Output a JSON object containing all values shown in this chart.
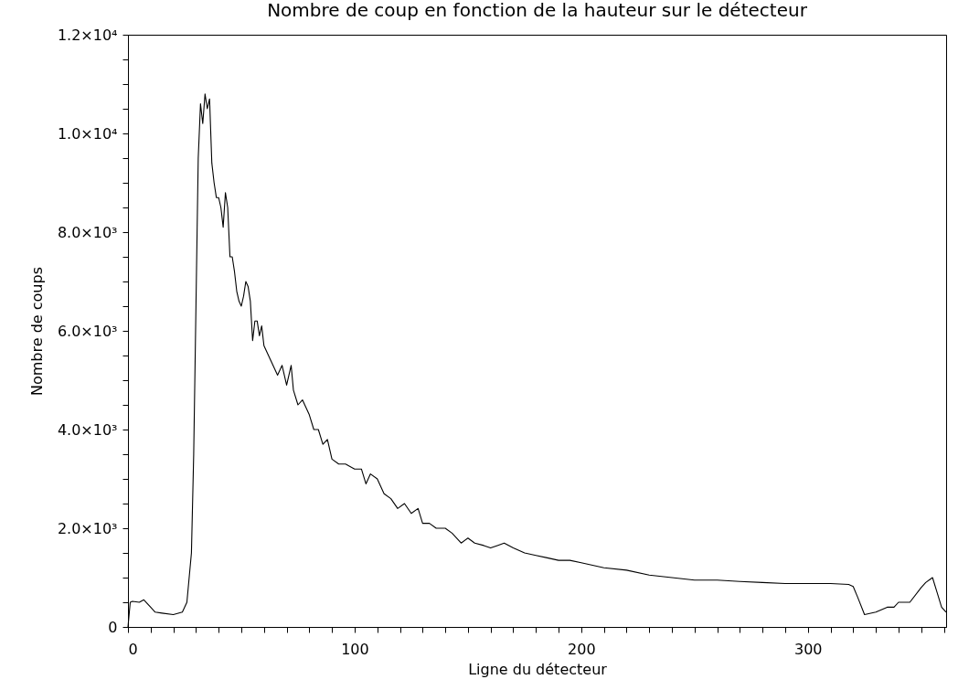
{
  "chart_data": {
    "type": "line",
    "title": "Nombre de coup en fonction de la hauteur sur le détecteur",
    "xlabel": "Ligne du détecteur",
    "ylabel": "Nombre de coups",
    "x": [
      0,
      1,
      2,
      5,
      7,
      10,
      12,
      15,
      20,
      24,
      26,
      28,
      29,
      30,
      31,
      32,
      33,
      34,
      35,
      36,
      37,
      38,
      39,
      40,
      41,
      42,
      43,
      44,
      45,
      46,
      47,
      48,
      49,
      50,
      51,
      52,
      53,
      54,
      55,
      56,
      57,
      58,
      59,
      60,
      62,
      64,
      66,
      68,
      70,
      72,
      73,
      75,
      77,
      78,
      80,
      82,
      84,
      86,
      88,
      90,
      93,
      96,
      100,
      103,
      105,
      107,
      110,
      113,
      116,
      119,
      122,
      125,
      128,
      130,
      133,
      136,
      140,
      143,
      147,
      150,
      153,
      157,
      160,
      163,
      166,
      170,
      175,
      180,
      185,
      190,
      195,
      200,
      210,
      220,
      230,
      240,
      250,
      260,
      270,
      280,
      290,
      300,
      310,
      318,
      320,
      322,
      325,
      330,
      335,
      338,
      340,
      345,
      350,
      352,
      355,
      357,
      359,
      361
    ],
    "series": [
      {
        "color": "#000000",
        "values": [
          0,
          500,
          520,
          500,
          550,
          400,
          300,
          280,
          250,
          300,
          500,
          1500,
          3500,
          6500,
          9500,
          10600,
          10200,
          10800,
          10500,
          10700,
          9400,
          9000,
          8700,
          8700,
          8500,
          8100,
          8800,
          8500,
          7500,
          7500,
          7200,
          6800,
          6600,
          6500,
          6700,
          7000,
          6900,
          6600,
          5800,
          6200,
          6200,
          5900,
          6100,
          5700,
          5500,
          5300,
          5100,
          5300,
          4900,
          5300,
          4800,
          4500,
          4600,
          4500,
          4300,
          4000,
          4000,
          3700,
          3800,
          3400,
          3300,
          3300,
          3200,
          3200,
          2900,
          3100,
          3000,
          2700,
          2600,
          2400,
          2500,
          2300,
          2400,
          2100,
          2100,
          2000,
          2000,
          1900,
          1700,
          1800,
          1700,
          1650,
          1600,
          1650,
          1700,
          1600,
          1500,
          1450,
          1400,
          1350,
          1350,
          1300,
          1200,
          1150,
          1050,
          1000,
          950,
          950,
          920,
          900,
          880,
          880,
          880,
          860,
          820,
          600,
          250,
          300,
          400,
          400,
          500,
          500,
          800,
          900,
          1000,
          700,
          400,
          300
        ]
      }
    ],
    "xlim": [
      0,
      361
    ],
    "ylim": [
      0,
      12000
    ],
    "xticks": [
      0,
      {
        "value": 10,
        "label": null
      },
      {
        "value": 20,
        "label": null
      },
      {
        "value": 30,
        "label": null
      },
      {
        "value": 40,
        "label": null
      },
      {
        "value": 50,
        "label": null
      },
      {
        "value": 60,
        "label": null
      },
      {
        "value": 70,
        "label": null
      },
      {
        "value": 80,
        "label": null
      },
      {
        "value": 90,
        "label": null
      },
      100,
      {
        "value": 110,
        "label": null
      },
      {
        "value": 120,
        "label": null
      },
      {
        "value": 130,
        "label": null
      },
      {
        "value": 140,
        "label": null
      },
      {
        "value": 150,
        "label": null
      },
      {
        "value": 160,
        "label": null
      },
      {
        "value": 170,
        "label": null
      },
      {
        "value": 180,
        "label": null
      },
      {
        "value": 190,
        "label": null
      },
      200,
      {
        "value": 210,
        "label": null
      },
      {
        "value": 220,
        "label": null
      },
      {
        "value": 230,
        "label": null
      },
      {
        "value": 240,
        "label": null
      },
      {
        "value": 250,
        "label": null
      },
      {
        "value": 260,
        "label": null
      },
      {
        "value": 270,
        "label": null
      },
      {
        "value": 280,
        "label": null
      },
      {
        "value": 290,
        "label": null
      },
      300,
      {
        "value": 310,
        "label": null
      },
      {
        "value": 320,
        "label": null
      },
      {
        "value": 330,
        "label": null
      },
      {
        "value": 340,
        "label": null
      },
      {
        "value": 350,
        "label": null
      },
      {
        "value": 360,
        "label": null
      }
    ],
    "yticks": [
      0,
      {
        "value": 500,
        "label": null
      },
      {
        "value": 1000,
        "label": null
      },
      {
        "value": 1500,
        "label": null
      },
      {
        "value": 2000,
        "label": "2.0×10³"
      },
      {
        "value": 2500,
        "label": null
      },
      {
        "value": 3000,
        "label": null
      },
      {
        "value": 3500,
        "label": null
      },
      {
        "value": 4000,
        "label": "4.0×10³"
      },
      {
        "value": 4500,
        "label": null
      },
      {
        "value": 5000,
        "label": null
      },
      {
        "value": 5500,
        "label": null
      },
      {
        "value": 6000,
        "label": "6.0×10³"
      },
      {
        "value": 6500,
        "label": null
      },
      {
        "value": 7000,
        "label": null
      },
      {
        "value": 7500,
        "label": null
      },
      {
        "value": 8000,
        "label": "8.0×10³"
      },
      {
        "value": 8500,
        "label": null
      },
      {
        "value": 9000,
        "label": null
      },
      {
        "value": 9500,
        "label": null
      },
      {
        "value": 10000,
        "label": "1.0×10⁴"
      },
      {
        "value": 10500,
        "label": null
      },
      {
        "value": 11000,
        "label": null
      },
      {
        "value": 11500,
        "label": null
      },
      {
        "value": 12000,
        "label": "1.2×10⁴"
      }
    ],
    "grid": false,
    "marker": "none",
    "line_style": "solid"
  }
}
